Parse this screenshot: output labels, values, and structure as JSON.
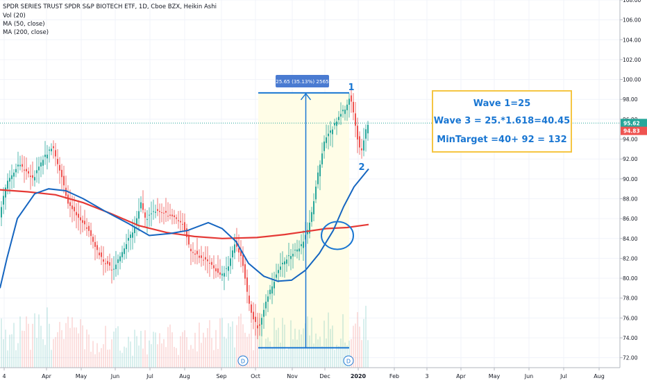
{
  "header": {
    "title": "SPDR SERIES TRUST SPDR S&P BIOTECH ETF, 1D, Cboe BZX, Heikin Ashi",
    "studies": [
      "Vol (20)",
      "MA (50, close)",
      "MA (200, close)"
    ]
  },
  "annotations": {
    "measure_label": "25.65 (35.13%) 2565",
    "wave1_label": "1",
    "wave2_label": "2",
    "info_lines": [
      "Wave 1=25",
      "Wave 3 = 25.*1.618=40.45",
      "MinTarget =40+ 92 = 132"
    ],
    "dividend_markers": [
      "D",
      "D"
    ]
  },
  "price_labels": {
    "last": "95.62",
    "secondary": "94.83"
  },
  "colors": {
    "up": "#26a69a",
    "down": "#ef5350",
    "ma50": "#1565c0",
    "ma200": "#e53935",
    "annotation": "#1976d2",
    "highlight": "#fffde7",
    "box_border": "#f5c542"
  },
  "chart_data": {
    "type": "candlestick",
    "title": "SPDR SERIES TRUST SPDR S&P BIOTECH ETF, 1D, Cboe BZX, Heikin Ashi",
    "xlabel": "",
    "ylabel": "",
    "ylim": [
      71,
      108
    ],
    "y_ticks": [
      72,
      74,
      76,
      78,
      80,
      82,
      84,
      86,
      88,
      90,
      92,
      94,
      96,
      98,
      100,
      102,
      104,
      106,
      108
    ],
    "x_tick_labels": [
      "4",
      "Apr",
      "May",
      "Jun",
      "Jul",
      "Aug",
      "Sep",
      "Oct",
      "Nov",
      "Dec",
      "2020",
      "Feb",
      "3",
      "Mar",
      "Apr",
      "May",
      "Jun",
      "Jul",
      "Aug"
    ],
    "grid": true,
    "series": [
      {
        "name": "MA (50, close)",
        "type": "line",
        "points": [
          [
            0,
            79
          ],
          [
            10,
            82
          ],
          [
            25,
            86
          ],
          [
            50,
            88.5
          ],
          [
            70,
            89
          ],
          [
            95,
            88.8
          ],
          [
            120,
            88
          ],
          [
            150,
            86.8
          ],
          [
            185,
            85.5
          ],
          [
            215,
            84.3
          ],
          [
            245,
            84.5
          ],
          [
            270,
            84.8
          ],
          [
            300,
            85.6
          ],
          [
            320,
            85
          ],
          [
            340,
            83.7
          ],
          [
            358,
            81.5
          ],
          [
            380,
            80.2
          ],
          [
            400,
            79.7
          ],
          [
            420,
            79.8
          ],
          [
            440,
            80.8
          ],
          [
            460,
            82.5
          ],
          [
            480,
            84.8
          ],
          [
            495,
            87.2
          ],
          [
            510,
            89.2
          ],
          [
            531,
            91
          ]
        ]
      },
      {
        "name": "MA (200, close)",
        "type": "line",
        "points": [
          [
            0,
            88.9
          ],
          [
            40,
            88.7
          ],
          [
            80,
            88.4
          ],
          [
            120,
            87.6
          ],
          [
            160,
            86.5
          ],
          [
            200,
            85.3
          ],
          [
            240,
            84.6
          ],
          [
            280,
            84.2
          ],
          [
            320,
            84
          ],
          [
            370,
            84.1
          ],
          [
            410,
            84.4
          ],
          [
            440,
            84.7
          ],
          [
            470,
            85
          ],
          [
            500,
            85.1
          ],
          [
            531,
            85.4
          ]
        ]
      },
      {
        "name": "Price (Heikin Ashi)",
        "type": "close_path",
        "points": [
          [
            0,
            86
          ],
          [
            12,
            89.8
          ],
          [
            30,
            91.5
          ],
          [
            50,
            90
          ],
          [
            65,
            92.2
          ],
          [
            78,
            93.2
          ],
          [
            90,
            90.5
          ],
          [
            100,
            87.5
          ],
          [
            115,
            86
          ],
          [
            128,
            85
          ],
          [
            140,
            83
          ],
          [
            150,
            81.8
          ],
          [
            165,
            80.8
          ],
          [
            180,
            83
          ],
          [
            195,
            85
          ],
          [
            205,
            87.5
          ],
          [
            212,
            86
          ],
          [
            225,
            86.7
          ],
          [
            240,
            86.5
          ],
          [
            255,
            86
          ],
          [
            265,
            85.5
          ],
          [
            275,
            83
          ],
          [
            290,
            82
          ],
          [
            305,
            81.5
          ],
          [
            318,
            80.2
          ],
          [
            330,
            81
          ],
          [
            340,
            83.5
          ],
          [
            350,
            82
          ],
          [
            358,
            78.5
          ],
          [
            366,
            76
          ],
          [
            375,
            74.8
          ],
          [
            385,
            77.5
          ],
          [
            395,
            79.5
          ],
          [
            405,
            81
          ],
          [
            415,
            82
          ],
          [
            425,
            82.6
          ],
          [
            435,
            83.2
          ],
          [
            445,
            84.8
          ],
          [
            452,
            87
          ],
          [
            460,
            90.5
          ],
          [
            470,
            94
          ],
          [
            480,
            95
          ],
          [
            490,
            96.2
          ],
          [
            500,
            97.2
          ],
          [
            506,
            98.3
          ],
          [
            512,
            96.3
          ],
          [
            518,
            93.5
          ],
          [
            522,
            92.5
          ],
          [
            527,
            94.2
          ],
          [
            531,
            95.6
          ]
        ]
      }
    ],
    "volume_profile": [
      [
        0,
        70
      ],
      [
        40,
        60
      ],
      [
        80,
        75
      ],
      [
        120,
        55
      ],
      [
        160,
        50
      ],
      [
        200,
        45
      ],
      [
        240,
        50
      ],
      [
        280,
        55
      ],
      [
        320,
        60
      ],
      [
        360,
        65
      ],
      [
        400,
        58
      ],
      [
        440,
        62
      ],
      [
        480,
        70
      ],
      [
        531,
        80
      ]
    ],
    "measure": {
      "x_start": 372,
      "x_end": 503,
      "y_start": 73,
      "y_end": 98.65,
      "label": "25.65 (35.13%) 2565"
    },
    "circle_marker": {
      "cx": 486,
      "cy": 84.3
    }
  }
}
